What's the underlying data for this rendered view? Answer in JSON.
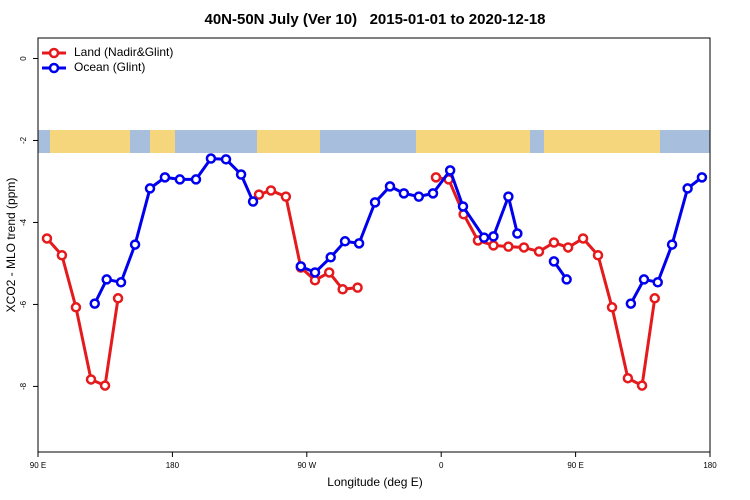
{
  "chart_data": {
    "type": "line",
    "title": "40N-50N July (Ver 10)   2015-01-01 to 2020-12-18",
    "xlabel": "Longitude (deg E)",
    "ylabel": "XCO2 - MLO trend (ppm)",
    "xlim": [
      90,
      540
    ],
    "ylim": [
      -9.6,
      0.5
    ],
    "xticks": [
      {
        "value": 90,
        "label": "90 E"
      },
      180,
      {
        "value": 270,
        "label": "90 W"
      },
      {
        "value": 360,
        "label": "0"
      },
      {
        "value": 450,
        "label": "90 E"
      },
      {
        "value": 540,
        "label": "180"
      }
    ],
    "yticks": [
      0,
      -2,
      -4,
      -6,
      -8
    ],
    "legend": "top-left",
    "series": [
      {
        "name": "Land (Nadir&Glint)",
        "color": "#e41a1c",
        "x": [
          96,
          106,
          115.4,
          125.5,
          134.9,
          143.6,
          null,
          238,
          246,
          256,
          266,
          275.5,
          285,
          294,
          304,
          null,
          356.5,
          365,
          375,
          384.6,
          395,
          405,
          415.4,
          425.5,
          435.5,
          445,
          455,
          465,
          474.4,
          485,
          494.5,
          503
        ],
        "values": [
          -4.39,
          -4.8,
          -6.07,
          -7.83,
          -7.98,
          -5.85,
          null,
          -3.32,
          -3.22,
          -3.37,
          -5.1,
          -5.41,
          -5.22,
          -5.63,
          -5.59,
          null,
          -2.9,
          -2.95,
          -3.8,
          -4.44,
          -4.56,
          -4.59,
          -4.61,
          -4.71,
          -4.49,
          -4.61,
          -4.39,
          -4.8,
          -6.07,
          -7.8,
          -7.98,
          -5.85
        ]
      },
      {
        "name": "Ocean (Glint)",
        "color": "#0000ee",
        "x": [
          128,
          136,
          145.6,
          155,
          165,
          175,
          185,
          195.8,
          205.8,
          215.9,
          226,
          234,
          null,
          266,
          275.5,
          286,
          295.6,
          305,
          315.7,
          325.7,
          335,
          345,
          354.5,
          366,
          374.6,
          388.7,
          395,
          405,
          411,
          null,
          435.5,
          444,
          null,
          487,
          495.8,
          505,
          514.6,
          525,
          534.6
        ],
        "values": [
          -5.98,
          -5.39,
          -5.46,
          -4.54,
          -3.17,
          -2.9,
          -2.95,
          -2.95,
          -2.44,
          -2.46,
          -2.83,
          -3.49,
          null,
          -5.07,
          -5.22,
          -4.85,
          -4.46,
          -4.51,
          -3.51,
          -3.12,
          -3.29,
          -3.37,
          -3.29,
          -2.73,
          -3.61,
          -4.37,
          -4.34,
          -3.37,
          -4.27,
          null,
          -4.95,
          -5.39,
          null,
          -5.98,
          -5.39,
          -5.46,
          -4.54,
          -3.17,
          -2.9
        ]
      }
    ]
  }
}
